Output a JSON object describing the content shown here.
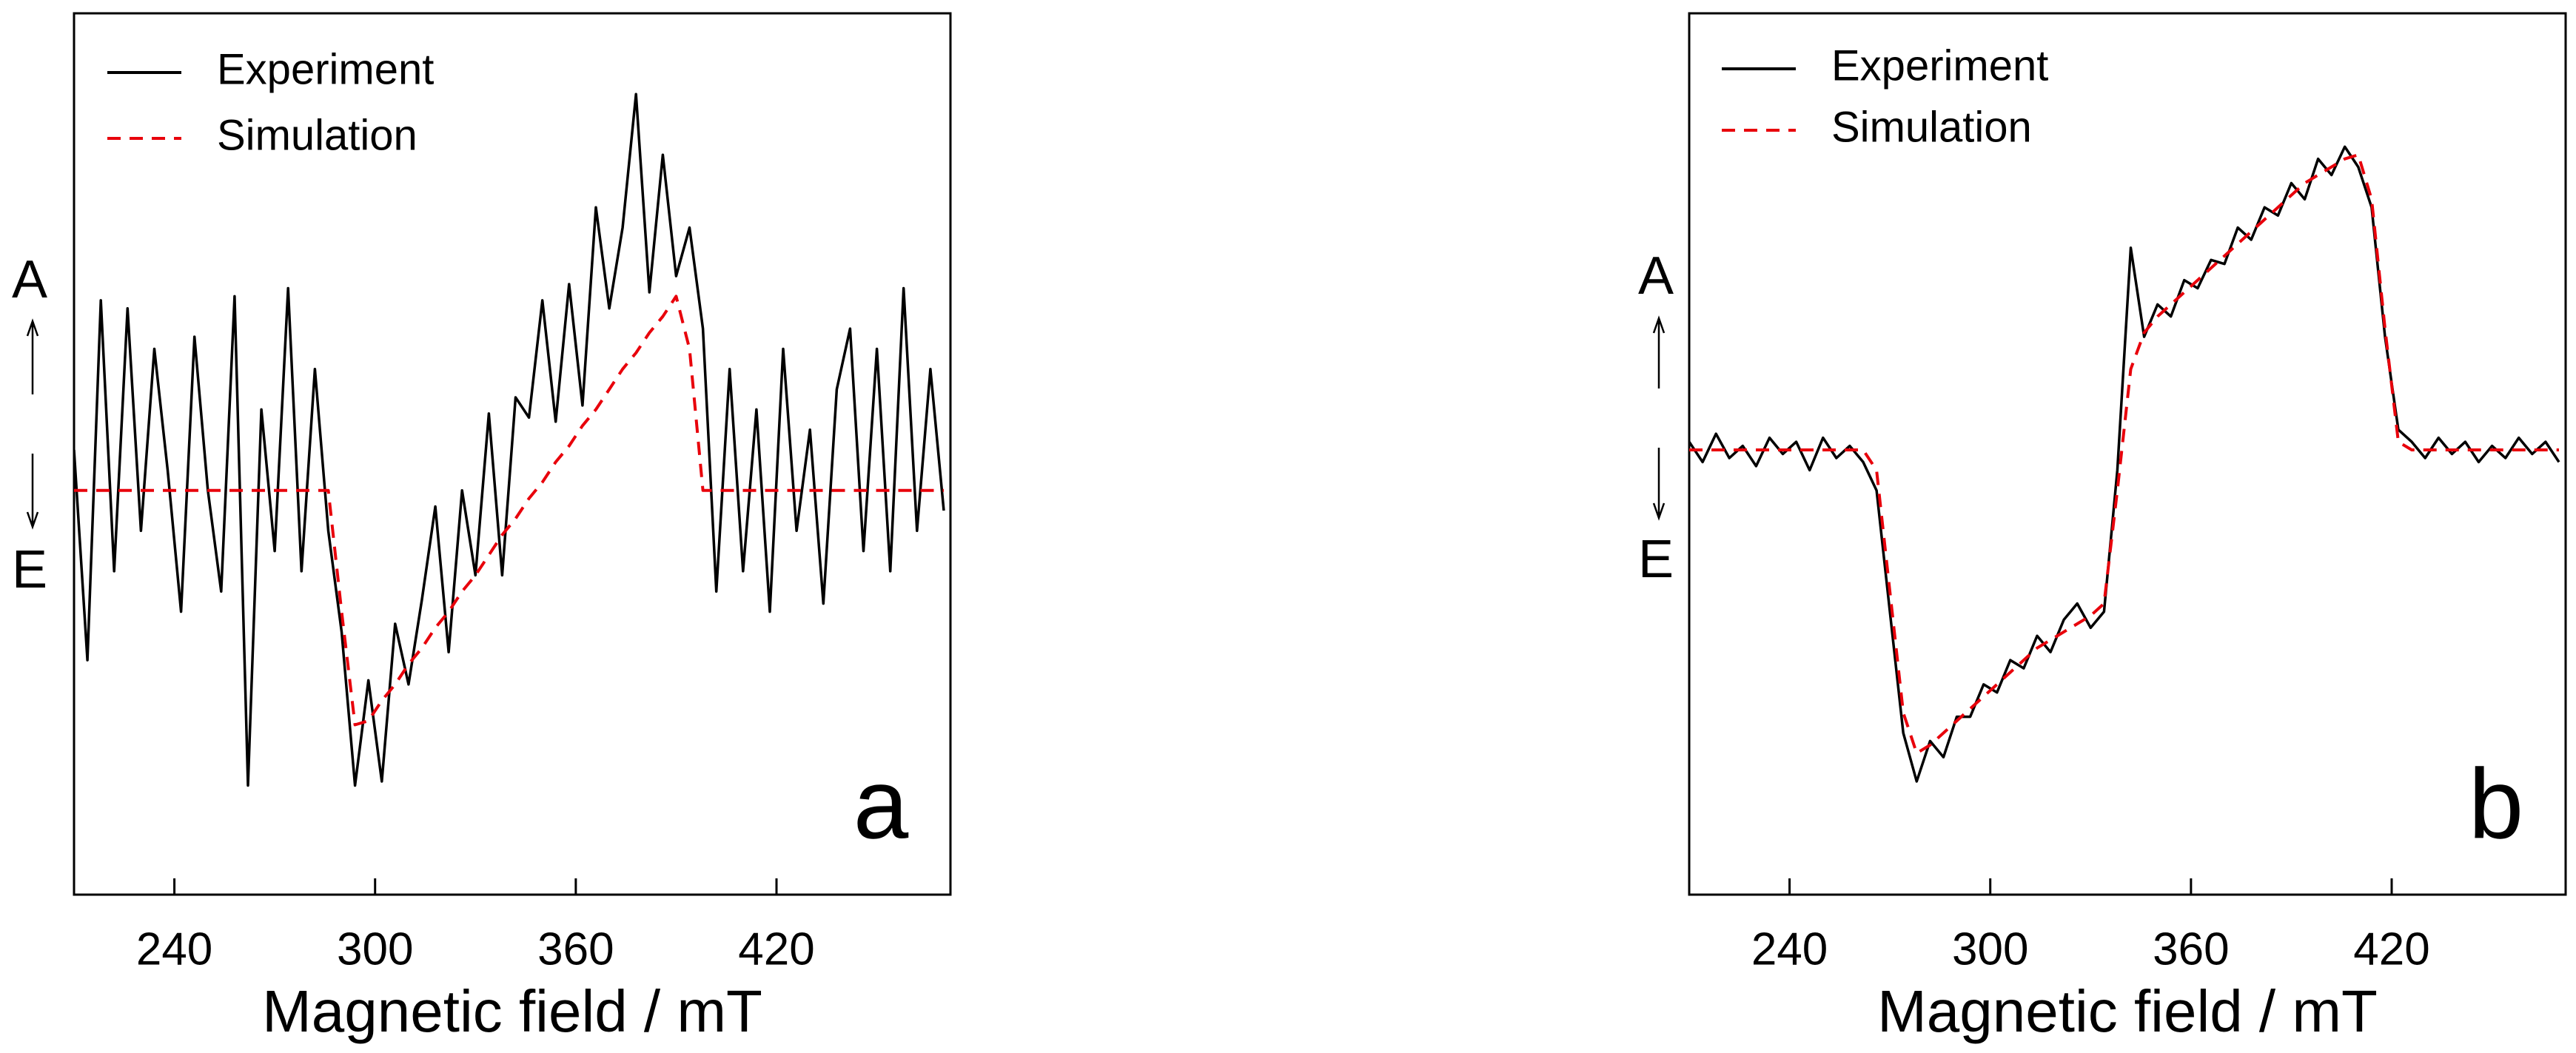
{
  "chart_data": [
    {
      "type": "line",
      "panel": "a",
      "xlabel": "Magnetic field / mT",
      "top_label": "A",
      "bottom_label": "E",
      "xlim": [
        210,
        472
      ],
      "xticks": [
        240,
        300,
        360,
        420
      ],
      "ylim": [
        -1,
        1.18
      ],
      "x": [
        210,
        214,
        218,
        222,
        226,
        230,
        234,
        238,
        242,
        246,
        250,
        254,
        258,
        262,
        266,
        270,
        274,
        278,
        282,
        286,
        290,
        294,
        298,
        302,
        306,
        310,
        314,
        318,
        322,
        326,
        330,
        334,
        338,
        342,
        346,
        350,
        354,
        358,
        362,
        366,
        370,
        374,
        378,
        382,
        386,
        390,
        394,
        398,
        402,
        406,
        410,
        414,
        418,
        422,
        426,
        430,
        434,
        438,
        442,
        446,
        450,
        454,
        458,
        462,
        466,
        470
      ],
      "series": [
        {
          "name": "Experiment",
          "color": "#000000",
          "linestyle": "solid",
          "values": [
            0.1,
            -0.42,
            0.47,
            -0.2,
            0.45,
            -0.1,
            0.35,
            0.05,
            -0.3,
            0.38,
            0.0,
            -0.25,
            0.48,
            -0.73,
            0.2,
            -0.15,
            0.5,
            -0.2,
            0.3,
            -0.1,
            -0.35,
            -0.73,
            -0.47,
            -0.72,
            -0.33,
            -0.48,
            -0.27,
            -0.04,
            -0.4,
            0.0,
            -0.21,
            0.19,
            -0.21,
            0.23,
            0.18,
            0.47,
            0.17,
            0.51,
            0.21,
            0.7,
            0.45,
            0.65,
            0.98,
            0.49,
            0.83,
            0.53,
            0.65,
            0.4,
            -0.25,
            0.3,
            -0.2,
            0.2,
            -0.3,
            0.35,
            -0.1,
            0.15,
            -0.28,
            0.25,
            0.4,
            -0.15,
            0.35,
            -0.2,
            0.5,
            -0.1,
            0.3,
            -0.05
          ]
        },
        {
          "name": "Simulation",
          "color": "#e8000b",
          "linestyle": "dashed",
          "values": [
            0,
            0,
            0,
            0,
            0,
            0,
            0,
            0,
            0,
            0,
            0,
            0,
            0,
            0,
            0,
            0,
            0,
            0,
            0,
            0,
            -0.3,
            -0.58,
            -0.57,
            -0.52,
            -0.48,
            -0.43,
            -0.39,
            -0.34,
            -0.3,
            -0.25,
            -0.21,
            -0.16,
            -0.11,
            -0.07,
            -0.02,
            0.02,
            0.07,
            0.11,
            0.16,
            0.2,
            0.25,
            0.3,
            0.34,
            0.39,
            0.43,
            0.48,
            0.35,
            0,
            0,
            0,
            0,
            0,
            0,
            0,
            0,
            0,
            0,
            0,
            0,
            0,
            0,
            0,
            0,
            0,
            0,
            0
          ]
        }
      ]
    },
    {
      "type": "line",
      "panel": "b",
      "xlabel": "Magnetic field / mT",
      "top_label": "A",
      "bottom_label": "E",
      "xlim": [
        210,
        472
      ],
      "xticks": [
        240,
        300,
        360,
        420
      ],
      "ylim": [
        -1.1,
        1.08
      ],
      "x": [
        210,
        214,
        218,
        222,
        226,
        230,
        234,
        238,
        242,
        246,
        250,
        254,
        258,
        262,
        266,
        270,
        274,
        278,
        282,
        286,
        290,
        294,
        298,
        302,
        306,
        310,
        314,
        318,
        322,
        326,
        330,
        334,
        338,
        342,
        346,
        350,
        354,
        358,
        362,
        366,
        370,
        374,
        378,
        382,
        386,
        390,
        394,
        398,
        402,
        406,
        410,
        414,
        418,
        422,
        426,
        430,
        434,
        438,
        442,
        446,
        450,
        454,
        458,
        462,
        466,
        470
      ],
      "series": [
        {
          "name": "Experiment",
          "color": "#000000",
          "linestyle": "solid",
          "values": [
            0.02,
            -0.03,
            0.04,
            -0.02,
            0.01,
            -0.04,
            0.03,
            -0.01,
            0.02,
            -0.05,
            0.03,
            -0.02,
            0.01,
            -0.03,
            -0.1,
            -0.4,
            -0.7,
            -0.82,
            -0.72,
            -0.76,
            -0.66,
            -0.66,
            -0.58,
            -0.6,
            -0.52,
            -0.54,
            -0.46,
            -0.5,
            -0.42,
            -0.38,
            -0.44,
            -0.4,
            -0.05,
            0.5,
            0.28,
            0.36,
            0.33,
            0.42,
            0.4,
            0.47,
            0.46,
            0.55,
            0.52,
            0.6,
            0.58,
            0.66,
            0.62,
            0.72,
            0.68,
            0.75,
            0.7,
            0.6,
            0.28,
            0.05,
            0.02,
            -0.02,
            0.03,
            -0.01,
            0.02,
            -0.03,
            0.01,
            -0.02,
            0.03,
            -0.01,
            0.02,
            -0.03
          ]
        },
        {
          "name": "Simulation",
          "color": "#e8000b",
          "linestyle": "dashed",
          "values": [
            0,
            0,
            0,
            0,
            0,
            0,
            0,
            0,
            0,
            0,
            0,
            0,
            0,
            0,
            -0.05,
            -0.35,
            -0.65,
            -0.75,
            -0.73,
            -0.7,
            -0.67,
            -0.64,
            -0.61,
            -0.58,
            -0.55,
            -0.52,
            -0.49,
            -0.47,
            -0.45,
            -0.43,
            -0.41,
            -0.38,
            -0.1,
            0.2,
            0.29,
            0.33,
            0.36,
            0.39,
            0.42,
            0.45,
            0.48,
            0.51,
            0.54,
            0.57,
            0.6,
            0.63,
            0.66,
            0.68,
            0.7,
            0.72,
            0.73,
            0.62,
            0.3,
            0.02,
            0,
            0,
            0,
            0,
            0,
            0,
            0,
            0,
            0,
            0,
            0,
            0
          ]
        }
      ]
    }
  ]
}
